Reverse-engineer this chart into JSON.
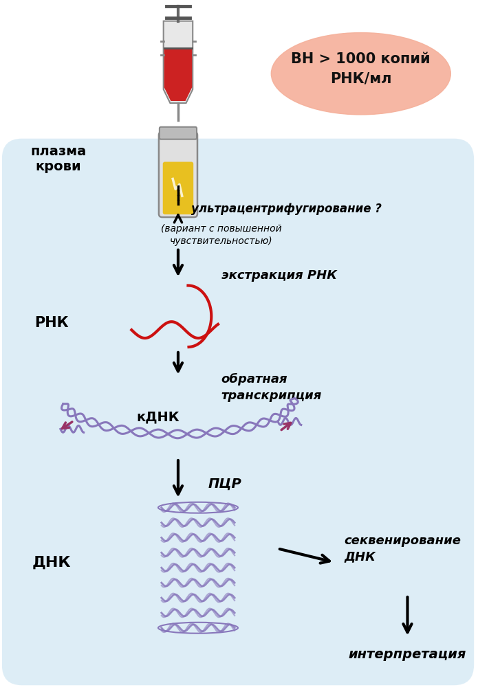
{
  "bg_color": "#ffffff",
  "salmon_text": "ВН > 1000 копий\nРНК/мл",
  "plasma_label": "плазма\nкрови",
  "labels": {
    "rnk": "РНК",
    "cdnk": "кДНК",
    "dnk": "ДНК",
    "ultracentrifuge": "ультрацентрифугирование ?",
    "ultracentrifuge_sub": "(вариант с повышенной\nчувствительностью)",
    "extraction": "экстракция РНК",
    "reverse": "обратная\nтранскрипция",
    "pcr": "ПЦР",
    "sequencing": "секвенирование\nДНК",
    "interpretation": "интерпретация"
  },
  "colors": {
    "blue_bg": "#c2dff0",
    "salmon": "#f5b09a",
    "red_rna": "#cc1111",
    "purple_dna": "#8877bb",
    "pink_arrow": "#993366",
    "arrow": "#111111"
  }
}
